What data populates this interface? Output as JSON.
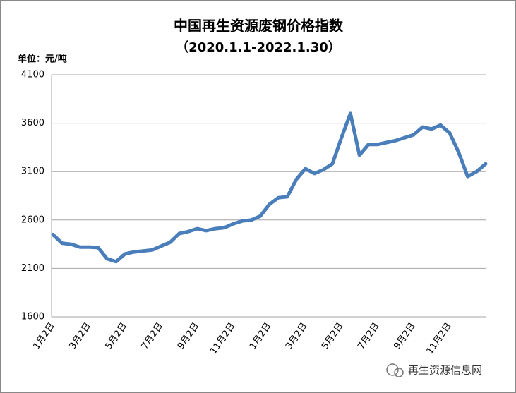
{
  "chart_data": {
    "type": "line",
    "title": "中国再生资源废钢价格指数",
    "subtitle": "（2020.1.1-2022.1.30）",
    "y_unit_label": "单位：元/吨",
    "watermark": "再生资源信息网",
    "categories": [
      "1月2日",
      null,
      null,
      null,
      "3月2日",
      null,
      null,
      null,
      "5月2日",
      null,
      null,
      null,
      "7月2日",
      null,
      null,
      null,
      "9月2日",
      null,
      null,
      null,
      "11月2日",
      null,
      null,
      null,
      "1月2日",
      null,
      null,
      null,
      "3月2日",
      null,
      null,
      null,
      "5月2日",
      null,
      null,
      null,
      "7月2日",
      null,
      null,
      null,
      "9月2日",
      null,
      null,
      null,
      "11月2日",
      null,
      null,
      null,
      null
    ],
    "values": [
      2450,
      2360,
      2350,
      2320,
      2320,
      2315,
      2200,
      2170,
      2250,
      2270,
      2280,
      2290,
      2330,
      2370,
      2460,
      2480,
      2510,
      2490,
      2510,
      2520,
      2560,
      2590,
      2600,
      2640,
      2760,
      2830,
      2840,
      3020,
      3130,
      3080,
      3120,
      3180,
      3450,
      3700,
      3270,
      3380,
      3380,
      3400,
      3420,
      3450,
      3480,
      3560,
      3540,
      3580,
      3500,
      3300,
      3050,
      3100,
      3180
    ],
    "color": "#4a7ebb",
    "ylim": [
      1600,
      4100
    ],
    "yticks": [
      1600,
      2100,
      2600,
      3100,
      3600,
      4100
    ],
    "grid": true
  }
}
